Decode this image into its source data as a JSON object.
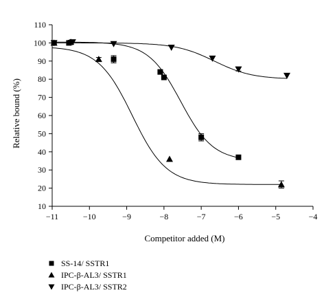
{
  "chart_data": {
    "type": "scatter",
    "xlabel": "Competitor added (M)",
    "ylabel": "Relative bound (%)",
    "xlim": [
      -11,
      -4
    ],
    "ylim": [
      10,
      110
    ],
    "x_ticks": [
      -11,
      -10,
      -9,
      -8,
      -7,
      -6,
      -5,
      -4
    ],
    "x_tick_labels": [
      "−11",
      "−10",
      "−9",
      "−8",
      "−7",
      "−6",
      "−5",
      "−4"
    ],
    "y_ticks": [
      10,
      20,
      30,
      40,
      50,
      60,
      70,
      80,
      90,
      100,
      110
    ],
    "y_tick_labels": [
      "10",
      "20",
      "30",
      "40",
      "50",
      "60",
      "70",
      "80",
      "90",
      "100",
      "110"
    ],
    "legend_position": "below",
    "series": [
      {
        "name": "SS-14/ SSTR1",
        "marker": "square",
        "x": [
          -10.95,
          -10.55,
          -9.35,
          -8.1,
          -8.0,
          -7.0,
          -6.0
        ],
        "y": [
          100,
          100,
          91,
          84,
          81,
          48,
          37
        ],
        "err": [
          1,
          1,
          2,
          0,
          0,
          2,
          0
        ],
        "fit": {
          "bottom": 35,
          "top": 100.5,
          "log_ec50": -7.55,
          "hill": 1.0
        }
      },
      {
        "name": "IPC-β-AL3/ SSTR1",
        "marker": "triangle-up",
        "x": [
          -10.95,
          -10.5,
          -9.75,
          -7.85,
          -4.85
        ],
        "y": [
          100,
          100.5,
          91,
          36,
          22
        ],
        "err": [
          0,
          1,
          1,
          0,
          2
        ],
        "fit": {
          "bottom": 22,
          "top": 98,
          "log_ec50": -8.85,
          "hill": 0.95
        }
      },
      {
        "name": "IPC-β-AL3/ SSTR2",
        "marker": "triangle-down",
        "x": [
          -10.95,
          -10.45,
          -9.35,
          -7.8,
          -6.7,
          -6.0,
          -4.7
        ],
        "y": [
          100,
          100.5,
          99.5,
          97.5,
          91.5,
          85.5,
          82
        ],
        "err": [
          0,
          0,
          0,
          0,
          0,
          1,
          0
        ],
        "fit": {
          "bottom": 80,
          "top": 100,
          "log_ec50": -6.65,
          "hill": 0.85
        }
      }
    ]
  }
}
